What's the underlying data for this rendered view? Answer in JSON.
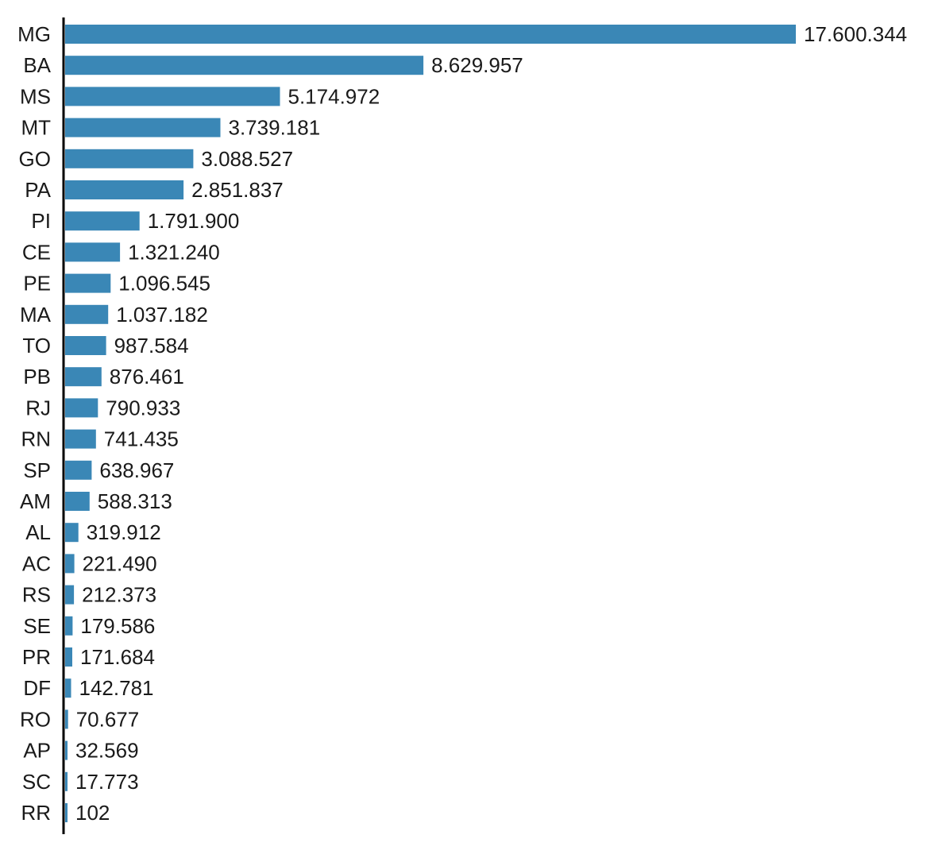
{
  "chart_data": {
    "type": "bar",
    "orientation": "horizontal",
    "title": "",
    "xlabel": "",
    "ylabel": "",
    "grid": false,
    "legend": "none",
    "bar_color": "#3a87b6",
    "axis_color": "#000000",
    "text_color": "#1a1a1a",
    "xlim": [
      0,
      17600344
    ],
    "categories": [
      "MG",
      "BA",
      "MS",
      "MT",
      "GO",
      "PA",
      "PI",
      "CE",
      "PE",
      "MA",
      "TO",
      "PB",
      "RJ",
      "RN",
      "SP",
      "AM",
      "AL",
      "AC",
      "RS",
      "SE",
      "PR",
      "DF",
      "RO",
      "AP",
      "SC",
      "RR"
    ],
    "values": [
      17600344,
      8629957,
      5174972,
      3739181,
      3088527,
      2851837,
      1791900,
      1321240,
      1096545,
      1037182,
      987584,
      876461,
      790933,
      741435,
      638967,
      588313,
      319912,
      221490,
      212373,
      179586,
      171684,
      142781,
      70677,
      32569,
      17773,
      102
    ],
    "value_labels": [
      "17.600.344",
      "8.629.957",
      "5.174.972",
      "3.739.181",
      "3.088.527",
      "2.851.837",
      "1.791.900",
      "1.321.240",
      "1.096.545",
      "1.037.182",
      "987.584",
      "876.461",
      "790.933",
      "741.435",
      "638.967",
      "588.313",
      "319.912",
      "221.490",
      "212.373",
      "179.586",
      "171.684",
      "142.781",
      "70.677",
      "32.569",
      "17.773",
      "102"
    ]
  }
}
